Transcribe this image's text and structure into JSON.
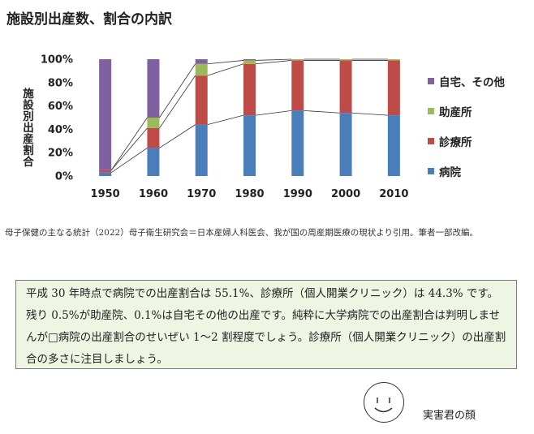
{
  "title": "施設別出産数、割合の内訳",
  "chart_data": {
    "type": "bar",
    "stacked": true,
    "percent": true,
    "categories": [
      "1950",
      "1960",
      "1970",
      "1980",
      "1990",
      "2000",
      "2010"
    ],
    "ylabel": "施設別出産割合",
    "ylim": [
      0,
      100
    ],
    "yticks": [
      "0%",
      "20%",
      "40%",
      "60%",
      "80%",
      "100%"
    ],
    "series": [
      {
        "name": "病院",
        "color": "#4a7ebb",
        "values": [
          3,
          24,
          44,
          52,
          56,
          54,
          52
        ]
      },
      {
        "name": "診療所",
        "color": "#be4b48",
        "values": [
          2,
          17,
          42,
          44,
          43,
          45,
          47
        ]
      },
      {
        "name": "助産所",
        "color": "#9bbb59",
        "values": [
          0,
          9,
          10,
          3,
          1,
          1,
          1
        ]
      },
      {
        "name": "自宅、その他",
        "color": "#7f60a0",
        "values": [
          95,
          50,
          4,
          1,
          0,
          0,
          0
        ]
      }
    ],
    "legend_position": "right",
    "connector_lines": true,
    "grid": false
  },
  "legend": {
    "items": [
      {
        "label": "自宅、その他",
        "color": "#7f60a0"
      },
      {
        "label": "助産所",
        "color": "#9bbb59"
      },
      {
        "label": "診療所",
        "color": "#be4b48"
      },
      {
        "label": "病院",
        "color": "#4a7ebb"
      }
    ]
  },
  "source_text": "母子保健の主なる統計（2022）母子衛生研究会＝日本産婦人科医会、我が国の周産期医療の現状より引用。筆者一部改編。",
  "note_text": "平成 30 年時点で病院での出産割合は 55.1%、診療所（個人開業クリニック）は 44.3% です。残り 0.5%が助産院、0.1%は自宅その他の出産です。純粋に大学病院での出産割合は判明しませんが□病院の出産割合のせいぜい 1〜2 割程度でしょう。診療所（個人開業クリニック）の出産割合の多さに注目しましょう。",
  "face_caption": "実害君の顔"
}
